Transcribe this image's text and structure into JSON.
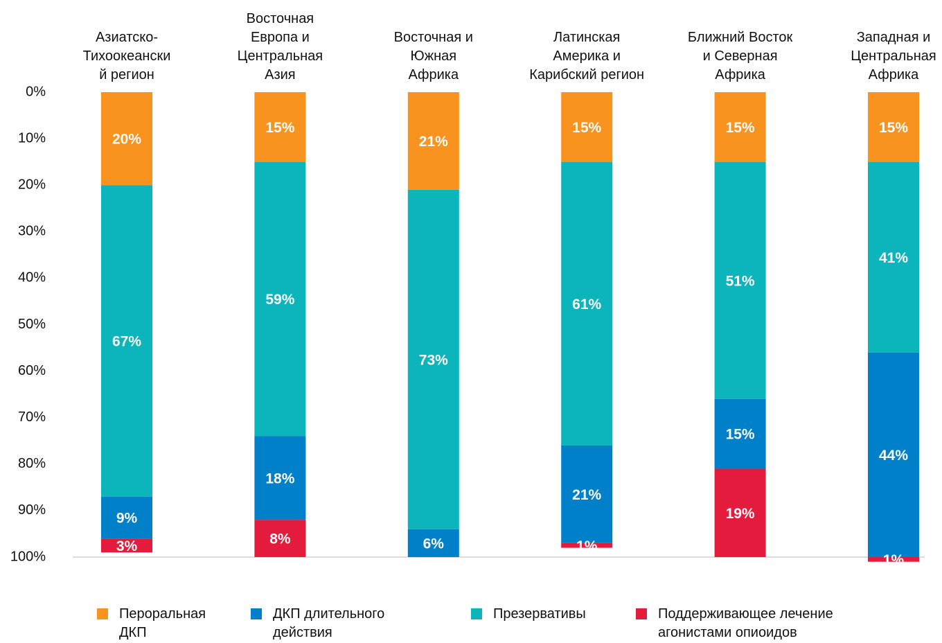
{
  "chart_data": {
    "type": "stacked_bar",
    "categories": [
      "Азиатско-\nТихоокеански\nй регион",
      "Восточная\nЕвропа и\nЦентральная\nАзия",
      "Восточная и\nЮжная\nАфрика",
      "Латинская\nАмерика и\nКарибский регион",
      "Ближний Восток\nи Северная\nАфрика",
      "Западная и\nЦентральная\nАфрика"
    ],
    "series": [
      {
        "name": "Пероральная\nДКП",
        "color": "#F7931E",
        "values": [
          20,
          15,
          21,
          15,
          15,
          15
        ],
        "value_labels": [
          "20%",
          "15%",
          "21%",
          "15%",
          "15%",
          "15%"
        ]
      },
      {
        "name": "ДКП длительного\nдействия",
        "color": "#0080C9",
        "values": [
          9,
          18,
          6,
          21,
          15,
          44
        ],
        "value_labels": [
          "9%",
          "18%",
          "6%",
          "21%",
          "15%",
          "44%"
        ]
      },
      {
        "name": "Презервативы",
        "color": "#0BB5BB",
        "values": [
          67,
          59,
          73,
          61,
          51,
          41
        ],
        "value_labels": [
          "67%",
          "59%",
          "73%",
          "61%",
          "51%",
          "41%"
        ]
      },
      {
        "name": "Поддерживающее лечение\nагонистами опиоидов",
        "color": "#E31C3D",
        "values": [
          3,
          8,
          null,
          1,
          19,
          1
        ],
        "value_labels": [
          "3%",
          "8%",
          null,
          "1%",
          "19%",
          "1%"
        ]
      }
    ],
    "ylim": [
      0,
      100
    ],
    "y_inverted": true,
    "yticks": [
      {
        "value": 0,
        "label": "0%"
      },
      {
        "value": 10,
        "label": "10%"
      },
      {
        "value": 20,
        "label": "20%"
      },
      {
        "value": 30,
        "label": "30%"
      },
      {
        "value": 40,
        "label": "40%"
      },
      {
        "value": 50,
        "label": "50%"
      },
      {
        "value": 60,
        "label": "60%"
      },
      {
        "value": 70,
        "label": "70%"
      },
      {
        "value": 80,
        "label": "80%"
      },
      {
        "value": 90,
        "label": "90%"
      },
      {
        "value": 100,
        "label": "100%"
      }
    ],
    "grid": false,
    "legend": "bottom"
  }
}
